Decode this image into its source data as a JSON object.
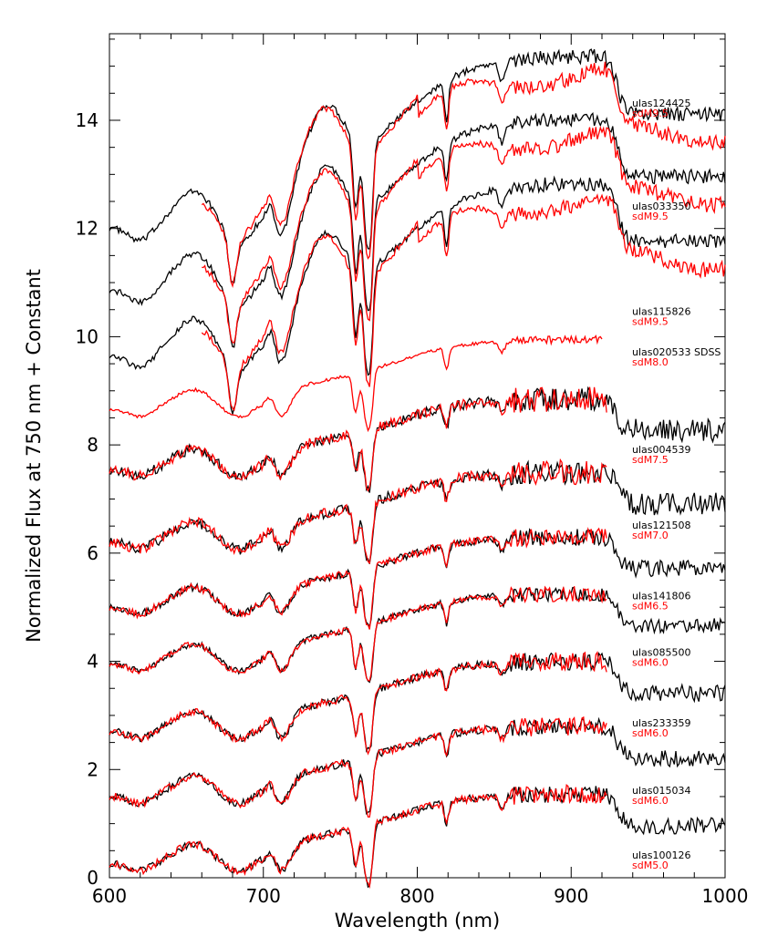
{
  "chart_data": {
    "type": "line",
    "title": "",
    "xlabel": "Wavelength (nm)",
    "ylabel": "Normalized Flux at 750 nm + Constant",
    "xlim": [
      600,
      1000
    ],
    "ylim": [
      0,
      15.6
    ],
    "x_ticks": [
      600,
      700,
      800,
      900,
      1000
    ],
    "y_ticks": [
      0,
      2,
      4,
      6,
      8,
      10,
      12,
      14
    ],
    "colors": {
      "object": "#000000",
      "template": "#ff0000"
    },
    "series": [
      {
        "object": "ulas124425",
        "template": "sdM9.5",
        "offset": 12.0,
        "label_y": 14.25,
        "object_max_x": 1000,
        "template_start_x": 660,
        "template_max_x": 1000,
        "noise": 1.0
      },
      {
        "object": "ulas033350",
        "template": "sdM9.5",
        "offset": 10.85,
        "label_y": 12.35,
        "object_max_x": 1000,
        "template_start_x": 660,
        "template_max_x": 1000,
        "noise": 1.0
      },
      {
        "object": "ulas115826",
        "template": "sdM9.5",
        "offset": 9.65,
        "label_y": 10.4,
        "object_max_x": 1000,
        "template_start_x": 660,
        "template_max_x": 1000,
        "noise": 1.0
      },
      {
        "object": "ulas020533 SDSS",
        "template": "sdM8.0",
        "offset": 8.65,
        "label_y": 9.65,
        "object_max_x": 0,
        "template_start_x": 600,
        "template_max_x": 920,
        "noise": 0.5
      },
      {
        "object": "ulas004539",
        "template": "sdM7.5",
        "offset": 7.55,
        "label_y": 7.85,
        "object_max_x": 1000,
        "template_start_x": 600,
        "template_max_x": 923,
        "noise": 1.6
      },
      {
        "object": "ulas121508",
        "template": "sdM7.0",
        "offset": 6.2,
        "label_y": 6.45,
        "object_max_x": 1000,
        "template_start_x": 600,
        "template_max_x": 923,
        "noise": 1.6
      },
      {
        "object": "ulas141806",
        "template": "sdM6.5",
        "offset": 5.0,
        "label_y": 5.15,
        "object_max_x": 1000,
        "template_start_x": 600,
        "template_max_x": 923,
        "noise": 1.2
      },
      {
        "object": "ulas085500",
        "template": "sdM6.0",
        "offset": 3.95,
        "label_y": 4.1,
        "object_max_x": 1000,
        "template_start_x": 600,
        "template_max_x": 923,
        "noise": 1.0
      },
      {
        "object": "ulas233359",
        "template": "sdM6.0",
        "offset": 2.7,
        "label_y": 2.8,
        "object_max_x": 1000,
        "template_start_x": 600,
        "template_max_x": 923,
        "noise": 1.2
      },
      {
        "object": "ulas015034",
        "template": "sdM6.0",
        "offset": 1.5,
        "label_y": 1.55,
        "object_max_x": 1000,
        "template_start_x": 600,
        "template_max_x": 923,
        "noise": 1.2
      },
      {
        "object": "ulas100126",
        "template": "sdM5.0",
        "offset": 0.25,
        "label_y": 0.35,
        "object_max_x": 1000,
        "template_start_x": 600,
        "template_max_x": 923,
        "noise": 1.2
      }
    ]
  }
}
